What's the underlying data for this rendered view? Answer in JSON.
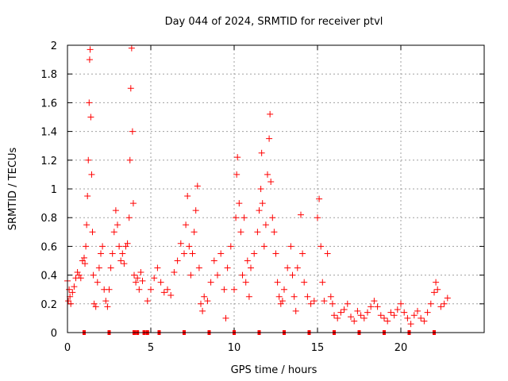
{
  "chart_data": {
    "type": "scatter",
    "title": "Day 044 of 2024, SRMTID for receiver ptvl",
    "xlabel": "GPS time / hours",
    "ylabel": "SRMTID / TECUs",
    "xlim": [
      0,
      25
    ],
    "ylim": [
      0,
      2
    ],
    "grid": true,
    "x_ticks": [
      0,
      5,
      10,
      15,
      20
    ],
    "x_tick_labels": [
      "0",
      "5",
      "10",
      "15",
      "20"
    ],
    "y_ticks": [
      0,
      0.2,
      0.4,
      0.6,
      0.8,
      1,
      1.2,
      1.4,
      1.6,
      1.8,
      2
    ],
    "y_tick_labels": [
      "0",
      "0.2",
      "0.4",
      "0.6",
      "0.8",
      "1",
      "1.2",
      "1.4",
      "1.6",
      "1.8",
      "2"
    ],
    "marker": "+",
    "marker_color": "#ff0000",
    "series": [
      {
        "name": "SRMTID",
        "points": [
          [
            0.0,
            0.36
          ],
          [
            0.05,
            0.22
          ],
          [
            0.1,
            0.3
          ],
          [
            0.15,
            0.25
          ],
          [
            0.2,
            0.2
          ],
          [
            0.3,
            0.28
          ],
          [
            0.4,
            0.32
          ],
          [
            0.5,
            0.38
          ],
          [
            0.6,
            0.42
          ],
          [
            0.7,
            0.4
          ],
          [
            0.8,
            0.38
          ],
          [
            0.9,
            0.5
          ],
          [
            1.0,
            0.52
          ],
          [
            1.05,
            0.48
          ],
          [
            1.1,
            0.6
          ],
          [
            1.15,
            0.75
          ],
          [
            1.2,
            0.95
          ],
          [
            1.25,
            1.2
          ],
          [
            1.3,
            1.6
          ],
          [
            1.33,
            1.9
          ],
          [
            1.36,
            1.97
          ],
          [
            1.4,
            1.5
          ],
          [
            1.45,
            1.1
          ],
          [
            1.5,
            0.7
          ],
          [
            1.55,
            0.4
          ],
          [
            1.6,
            0.2
          ],
          [
            1.7,
            0.18
          ],
          [
            1.8,
            0.35
          ],
          [
            1.9,
            0.45
          ],
          [
            2.0,
            0.55
          ],
          [
            2.1,
            0.6
          ],
          [
            2.2,
            0.3
          ],
          [
            2.3,
            0.22
          ],
          [
            2.4,
            0.18
          ],
          [
            2.5,
            0.3
          ],
          [
            2.6,
            0.45
          ],
          [
            2.7,
            0.55
          ],
          [
            2.8,
            0.7
          ],
          [
            2.9,
            0.85
          ],
          [
            3.0,
            0.75
          ],
          [
            3.1,
            0.6
          ],
          [
            3.2,
            0.5
          ],
          [
            3.3,
            0.55
          ],
          [
            3.4,
            0.48
          ],
          [
            3.5,
            0.6
          ],
          [
            3.6,
            0.62
          ],
          [
            3.7,
            0.8
          ],
          [
            3.75,
            1.2
          ],
          [
            3.8,
            1.7
          ],
          [
            3.85,
            1.98
          ],
          [
            3.9,
            1.4
          ],
          [
            3.95,
            0.9
          ],
          [
            4.0,
            0.4
          ],
          [
            4.1,
            0.35
          ],
          [
            4.2,
            0.38
          ],
          [
            4.3,
            0.3
          ],
          [
            4.4,
            0.42
          ],
          [
            4.5,
            0.36
          ],
          [
            4.8,
            0.22
          ],
          [
            5.0,
            0.3
          ],
          [
            5.2,
            0.38
          ],
          [
            5.4,
            0.45
          ],
          [
            5.6,
            0.35
          ],
          [
            5.8,
            0.28
          ],
          [
            6.0,
            0.3
          ],
          [
            6.2,
            0.26
          ],
          [
            6.4,
            0.42
          ],
          [
            6.6,
            0.5
          ],
          [
            6.8,
            0.62
          ],
          [
            7.0,
            0.55
          ],
          [
            7.1,
            0.75
          ],
          [
            7.2,
            0.95
          ],
          [
            7.3,
            0.6
          ],
          [
            7.4,
            0.4
          ],
          [
            7.5,
            0.55
          ],
          [
            7.6,
            0.7
          ],
          [
            7.7,
            0.85
          ],
          [
            7.8,
            1.02
          ],
          [
            7.9,
            0.45
          ],
          [
            8.0,
            0.2
          ],
          [
            8.1,
            0.15
          ],
          [
            8.2,
            0.25
          ],
          [
            8.4,
            0.22
          ],
          [
            8.6,
            0.35
          ],
          [
            8.8,
            0.5
          ],
          [
            9.0,
            0.4
          ],
          [
            9.2,
            0.55
          ],
          [
            9.4,
            0.3
          ],
          [
            9.5,
            0.1
          ],
          [
            9.6,
            0.45
          ],
          [
            9.8,
            0.6
          ],
          [
            10.0,
            0.3
          ],
          [
            10.1,
            0.8
          ],
          [
            10.15,
            1.1
          ],
          [
            10.2,
            1.22
          ],
          [
            10.3,
            0.9
          ],
          [
            10.4,
            0.7
          ],
          [
            10.5,
            0.4
          ],
          [
            10.6,
            0.8
          ],
          [
            10.7,
            0.35
          ],
          [
            10.8,
            0.5
          ],
          [
            10.9,
            0.25
          ],
          [
            11.0,
            0.45
          ],
          [
            11.2,
            0.55
          ],
          [
            11.4,
            0.7
          ],
          [
            11.5,
            0.85
          ],
          [
            11.6,
            1.0
          ],
          [
            11.65,
            1.25
          ],
          [
            11.7,
            0.9
          ],
          [
            11.8,
            0.6
          ],
          [
            11.9,
            0.75
          ],
          [
            12.0,
            1.1
          ],
          [
            12.1,
            1.35
          ],
          [
            12.15,
            1.52
          ],
          [
            12.2,
            1.05
          ],
          [
            12.3,
            0.8
          ],
          [
            12.4,
            0.7
          ],
          [
            12.5,
            0.55
          ],
          [
            12.6,
            0.35
          ],
          [
            12.7,
            0.25
          ],
          [
            12.8,
            0.2
          ],
          [
            12.9,
            0.22
          ],
          [
            13.0,
            0.3
          ],
          [
            13.2,
            0.45
          ],
          [
            13.4,
            0.6
          ],
          [
            13.5,
            0.4
          ],
          [
            13.6,
            0.25
          ],
          [
            13.7,
            0.15
          ],
          [
            13.8,
            0.45
          ],
          [
            14.0,
            0.82
          ],
          [
            14.1,
            0.55
          ],
          [
            14.2,
            0.35
          ],
          [
            14.4,
            0.25
          ],
          [
            14.6,
            0.2
          ],
          [
            14.8,
            0.22
          ],
          [
            15.0,
            0.8
          ],
          [
            15.1,
            0.93
          ],
          [
            15.2,
            0.6
          ],
          [
            15.3,
            0.35
          ],
          [
            15.4,
            0.22
          ],
          [
            15.6,
            0.55
          ],
          [
            15.8,
            0.25
          ],
          [
            15.9,
            0.2
          ],
          [
            16.0,
            0.12
          ],
          [
            16.2,
            0.1
          ],
          [
            16.4,
            0.14
          ],
          [
            16.6,
            0.16
          ],
          [
            16.8,
            0.2
          ],
          [
            17.0,
            0.11
          ],
          [
            17.2,
            0.08
          ],
          [
            17.4,
            0.15
          ],
          [
            17.6,
            0.12
          ],
          [
            17.8,
            0.1
          ],
          [
            18.0,
            0.14
          ],
          [
            18.2,
            0.18
          ],
          [
            18.4,
            0.22
          ],
          [
            18.6,
            0.18
          ],
          [
            18.8,
            0.12
          ],
          [
            19.0,
            0.1
          ],
          [
            19.2,
            0.08
          ],
          [
            19.4,
            0.14
          ],
          [
            19.6,
            0.12
          ],
          [
            19.8,
            0.16
          ],
          [
            20.0,
            0.2
          ],
          [
            20.2,
            0.14
          ],
          [
            20.4,
            0.1
          ],
          [
            20.6,
            0.06
          ],
          [
            20.8,
            0.12
          ],
          [
            21.0,
            0.15
          ],
          [
            21.2,
            0.1
          ],
          [
            21.4,
            0.08
          ],
          [
            21.6,
            0.14
          ],
          [
            21.8,
            0.2
          ],
          [
            22.0,
            0.28
          ],
          [
            22.1,
            0.35
          ],
          [
            22.2,
            0.3
          ],
          [
            22.4,
            0.18
          ],
          [
            22.6,
            0.2
          ],
          [
            22.8,
            0.24
          ]
        ]
      },
      {
        "name": "zero markers",
        "points": [
          [
            1.0,
            0
          ],
          [
            2.5,
            0
          ],
          [
            4.0,
            0
          ],
          [
            4.2,
            0
          ],
          [
            4.6,
            0
          ],
          [
            4.8,
            0
          ],
          [
            5.5,
            0
          ],
          [
            7.0,
            0
          ],
          [
            8.5,
            0
          ],
          [
            10.0,
            0
          ],
          [
            11.5,
            0
          ],
          [
            13.0,
            0
          ],
          [
            14.5,
            0
          ],
          [
            16.0,
            0
          ],
          [
            17.5,
            0
          ],
          [
            19.0,
            0
          ],
          [
            20.5,
            0
          ],
          [
            22.0,
            0
          ]
        ]
      }
    ]
  }
}
